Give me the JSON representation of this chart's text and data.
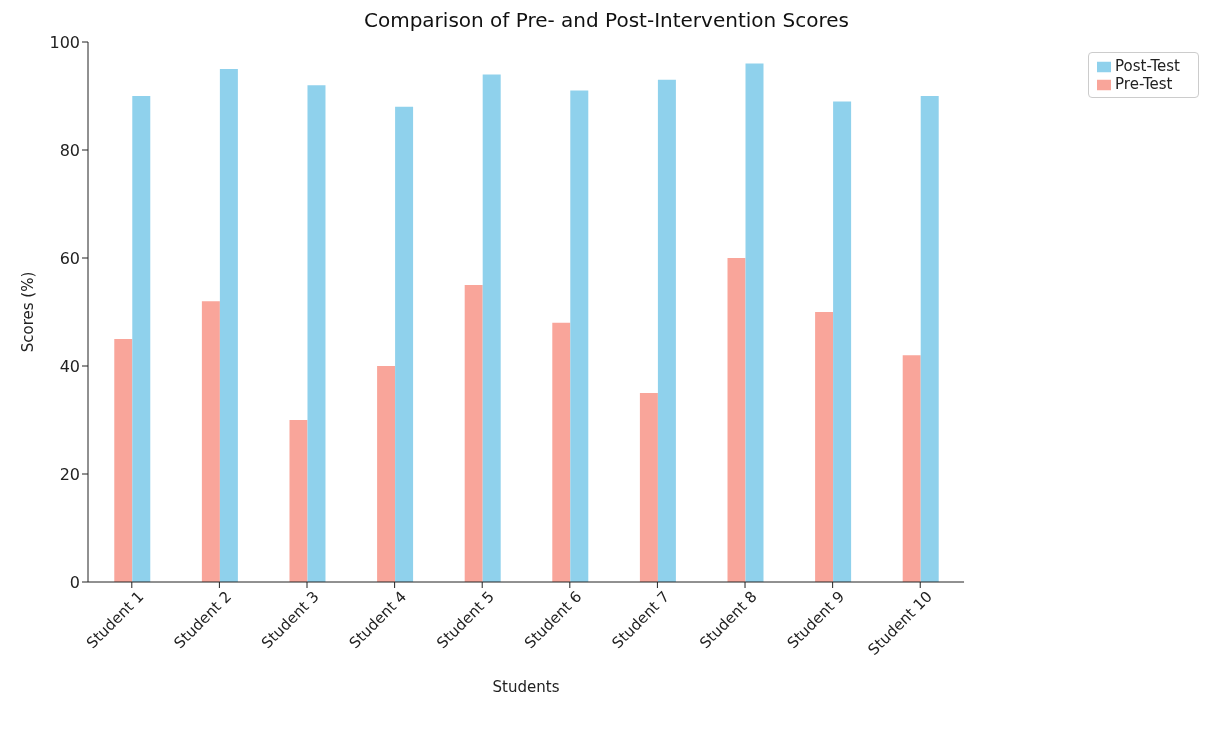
{
  "chart_data": {
    "type": "bar",
    "title": "Comparison of Pre- and Post-Intervention Scores",
    "xlabel": "Students",
    "ylabel": "Scores (%)",
    "categories": [
      "Student 1",
      "Student 2",
      "Student 3",
      "Student 4",
      "Student 5",
      "Student 6",
      "Student 7",
      "Student 8",
      "Student 9",
      "Student 10"
    ],
    "series": [
      {
        "name": "Pre-Test",
        "color": "#f9a59a",
        "values": [
          45,
          52,
          30,
          40,
          55,
          48,
          35,
          60,
          50,
          42
        ]
      },
      {
        "name": "Post-Test",
        "color": "#8fd1ec",
        "values": [
          90,
          95,
          92,
          88,
          94,
          91,
          93,
          96,
          89,
          90
        ]
      }
    ],
    "ylim": [
      0,
      100
    ],
    "yticks": [
      0,
      20,
      40,
      60,
      80,
      100
    ],
    "grid": false,
    "legend": "top right"
  }
}
